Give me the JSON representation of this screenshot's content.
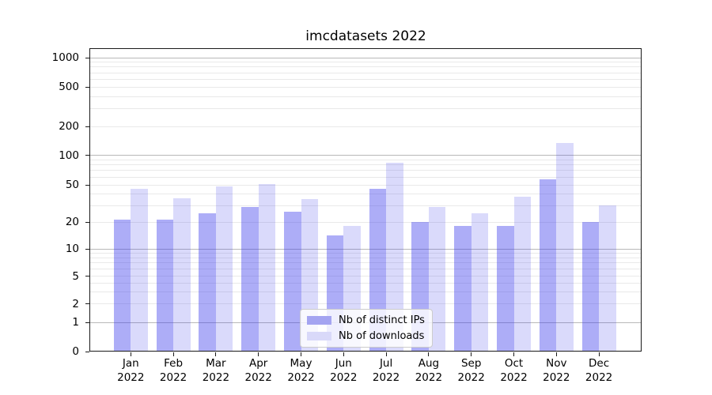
{
  "chart_data": {
    "type": "bar",
    "title": "imcdatasets 2022",
    "categories": [
      "Jan",
      "Feb",
      "Mar",
      "Apr",
      "May",
      "Jun",
      "Jul",
      "Aug",
      "Sep",
      "Oct",
      "Nov",
      "Dec"
    ],
    "category_year": "2022",
    "series": [
      {
        "name": "Nb of distinct IPs",
        "color": "rgba(60,60,235,0.42)",
        "swatch_color": "#a4a4f1",
        "values": [
          21,
          21,
          25,
          29,
          26,
          14,
          45,
          20,
          18,
          18,
          57,
          20
        ]
      },
      {
        "name": "Nb of downloads",
        "color": "rgba(60,60,235,0.19)",
        "swatch_color": "#d9d9f9",
        "values": [
          45,
          36,
          48,
          51,
          35,
          18,
          84,
          29,
          25,
          37,
          135,
          30
        ]
      }
    ],
    "y_scale": "symlog",
    "ylim": [
      0,
      1000
    ],
    "y_ticks_labeled": [
      0,
      1,
      2,
      5,
      10,
      20,
      50,
      100,
      200,
      500,
      1000
    ],
    "y_gridlines_major": [
      1,
      10,
      100,
      1000
    ],
    "y_gridlines_minor": [
      2,
      3,
      4,
      5,
      6,
      7,
      8,
      9,
      20,
      30,
      40,
      50,
      60,
      70,
      80,
      90,
      200,
      300,
      400,
      500,
      600,
      700,
      800,
      900
    ],
    "grid": true,
    "legend_position": "lower center",
    "colors": {
      "grid_major": "#b8b8b8",
      "grid_minor": "#e9e9e9",
      "axis": "#1a1a1a",
      "text": "#000000",
      "legend_border": "#cccccc",
      "legend_background": "rgba(255,255,255,0.8)"
    }
  }
}
